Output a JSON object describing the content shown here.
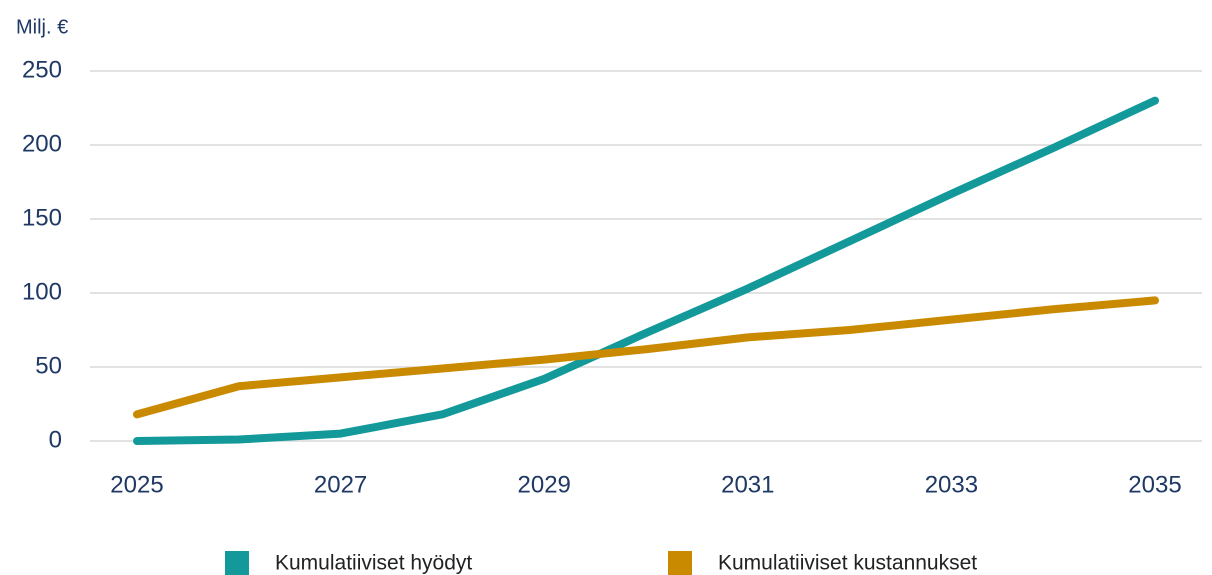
{
  "chart_data": {
    "type": "line",
    "y_label": "Milj. €",
    "x": [
      2025,
      2026,
      2027,
      2028,
      2029,
      2030,
      2031,
      2032,
      2033,
      2034,
      2035
    ],
    "series": [
      {
        "name": "Kumulatiiviset hyödyt",
        "color": "#13999a",
        "values": [
          0,
          1,
          5,
          18,
          42,
          73,
          103,
          135,
          167,
          198,
          230
        ]
      },
      {
        "name": "Kumulatiiviset kustannukset",
        "color": "#c98a00",
        "values": [
          18,
          37,
          43,
          49,
          55,
          62,
          70,
          75,
          82,
          89,
          95
        ]
      }
    ],
    "xlim": [
      2025,
      2035
    ],
    "xticks": [
      2025,
      2027,
      2029,
      2031,
      2033,
      2035
    ],
    "ylim": [
      0,
      250
    ],
    "yticks": [
      0,
      50,
      100,
      150,
      200,
      250
    ],
    "grid": true,
    "legend": "bottom"
  }
}
